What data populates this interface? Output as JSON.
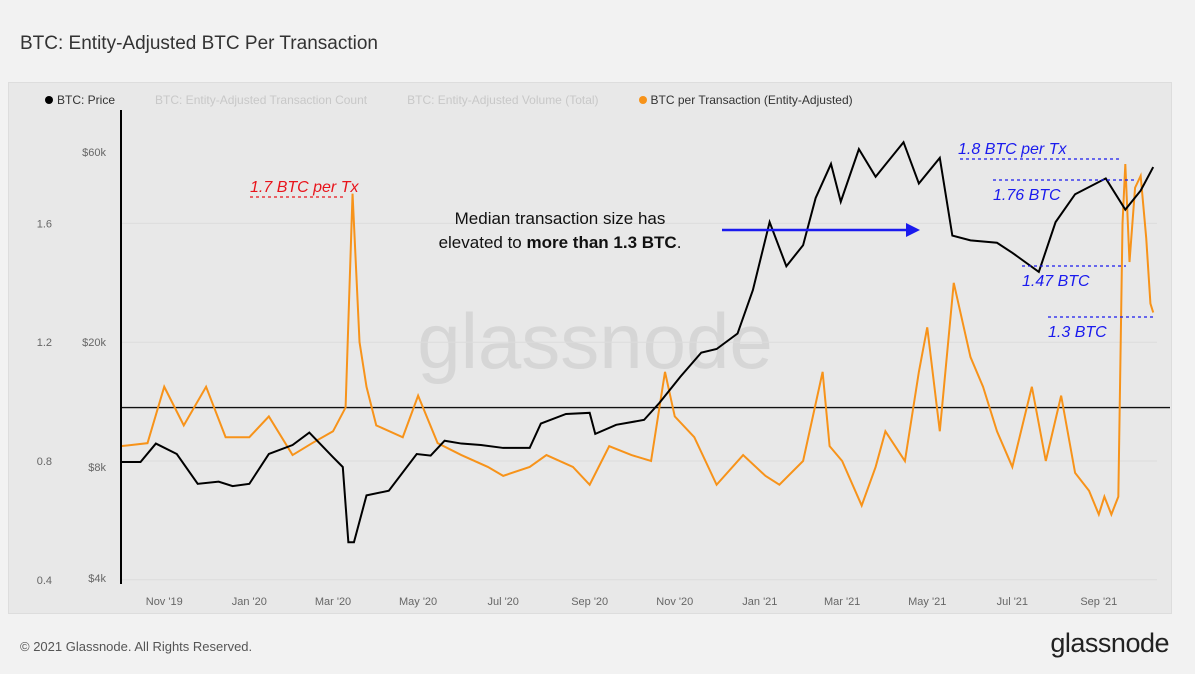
{
  "title": "BTC: Entity-Adjusted BTC Per Transaction",
  "footer": "© 2021 Glassnode. All Rights Reserved.",
  "logo": "glassnode",
  "watermark": "glassnode",
  "colors": {
    "price": "#000000",
    "btc_per_tx": "#f7931a",
    "legend_inactive": "#c8c8c8",
    "annotation_red": "#e8141b",
    "annotation_blue": "#1a1aee"
  },
  "chart_data": {
    "type": "line",
    "title": "BTC: Entity-Adjusted BTC Per Transaction",
    "legend": {
      "placement": "top-left",
      "entries": [
        {
          "label": "BTC: Price",
          "active": true,
          "color": "#000000"
        },
        {
          "label": "BTC: Entity-Adjusted Transaction Count",
          "active": false
        },
        {
          "label": "BTC: Entity-Adjusted Volume (Total)",
          "active": false
        },
        {
          "label": "BTC per Transaction (Entity-Adjusted)",
          "active": true,
          "color": "#f7931a"
        }
      ]
    },
    "x_ticks": [
      [
        "2019-11-01",
        "Nov '19"
      ],
      [
        "2020-01-01",
        "Jan '20"
      ],
      [
        "2020-03-01",
        "Mar '20"
      ],
      [
        "2020-05-01",
        "May '20"
      ],
      [
        "2020-07-01",
        "Jul '20"
      ],
      [
        "2020-09-01",
        "Sep '20"
      ],
      [
        "2020-11-01",
        "Nov '20"
      ],
      [
        "2021-01-01",
        "Jan '21"
      ],
      [
        "2021-03-01",
        "Mar '21"
      ],
      [
        "2021-05-01",
        "May '21"
      ],
      [
        "2021-07-01",
        "Jul '21"
      ],
      [
        "2021-09-01",
        "Sep '21"
      ]
    ],
    "xlim": [
      "2019-10-01",
      "2021-10-12"
    ],
    "y_left": {
      "ticks": [
        0.4,
        0.8,
        1.2,
        1.6
      ],
      "labels": [
        "0.4",
        "0.8",
        "1.2",
        "1.6"
      ],
      "range": [
        0.4,
        1.9
      ]
    },
    "y_price": {
      "scale": "log",
      "ticks": [
        4000,
        8000,
        20000,
        60000
      ],
      "labels": [
        "$4k",
        "$8k",
        "$20k",
        "$60k"
      ]
    },
    "grid": true,
    "reference_line": 0.98,
    "series": [
      {
        "name": "BTC: Price",
        "axis": "price",
        "points": [
          [
            "2019-10-01",
            8300
          ],
          [
            "2019-10-15",
            8300
          ],
          [
            "2019-10-26",
            9500
          ],
          [
            "2019-11-10",
            8800
          ],
          [
            "2019-11-25",
            7200
          ],
          [
            "2019-12-10",
            7300
          ],
          [
            "2019-12-20",
            7100
          ],
          [
            "2020-01-01",
            7200
          ],
          [
            "2020-01-15",
            8800
          ],
          [
            "2020-02-01",
            9400
          ],
          [
            "2020-02-13",
            10300
          ],
          [
            "2020-03-01",
            8600
          ],
          [
            "2020-03-08",
            8000
          ],
          [
            "2020-03-12",
            5000
          ],
          [
            "2020-03-16",
            5000
          ],
          [
            "2020-03-25",
            6700
          ],
          [
            "2020-04-10",
            6900
          ],
          [
            "2020-04-30",
            8800
          ],
          [
            "2020-05-10",
            8700
          ],
          [
            "2020-05-20",
            9700
          ],
          [
            "2020-06-01",
            9500
          ],
          [
            "2020-06-15",
            9400
          ],
          [
            "2020-07-01",
            9200
          ],
          [
            "2020-07-20",
            9200
          ],
          [
            "2020-07-28",
            11000
          ],
          [
            "2020-08-15",
            11800
          ],
          [
            "2020-09-01",
            11900
          ],
          [
            "2020-09-05",
            10200
          ],
          [
            "2020-09-20",
            10900
          ],
          [
            "2020-10-10",
            11300
          ],
          [
            "2020-10-21",
            12800
          ],
          [
            "2020-11-05",
            15500
          ],
          [
            "2020-11-20",
            18500
          ],
          [
            "2020-12-01",
            19000
          ],
          [
            "2020-12-16",
            21000
          ],
          [
            "2020-12-27",
            27000
          ],
          [
            "2021-01-08",
            40000
          ],
          [
            "2021-01-20",
            31000
          ],
          [
            "2021-02-01",
            35000
          ],
          [
            "2021-02-10",
            46000
          ],
          [
            "2021-02-21",
            56000
          ],
          [
            "2021-02-28",
            45000
          ],
          [
            "2021-03-13",
            61000
          ],
          [
            "2021-03-25",
            52000
          ],
          [
            "2021-04-14",
            63500
          ],
          [
            "2021-04-25",
            50000
          ],
          [
            "2021-05-10",
            58000
          ],
          [
            "2021-05-19",
            37000
          ],
          [
            "2021-06-01",
            36000
          ],
          [
            "2021-06-20",
            35500
          ],
          [
            "2021-07-01",
            33500
          ],
          [
            "2021-07-20",
            30000
          ],
          [
            "2021-08-01",
            40000
          ],
          [
            "2021-08-15",
            47000
          ],
          [
            "2021-09-06",
            51500
          ],
          [
            "2021-09-20",
            43000
          ],
          [
            "2021-10-01",
            48000
          ],
          [
            "2021-10-10",
            55000
          ]
        ]
      },
      {
        "name": "BTC per Transaction (Entity-Adjusted)",
        "axis": "left",
        "points": [
          [
            "2019-10-01",
            0.85
          ],
          [
            "2019-10-20",
            0.86
          ],
          [
            "2019-11-01",
            1.05
          ],
          [
            "2019-11-15",
            0.92
          ],
          [
            "2019-12-01",
            1.05
          ],
          [
            "2019-12-15",
            0.88
          ],
          [
            "2020-01-01",
            0.88
          ],
          [
            "2020-01-15",
            0.95
          ],
          [
            "2020-02-01",
            0.82
          ],
          [
            "2020-02-15",
            0.86
          ],
          [
            "2020-03-01",
            0.9
          ],
          [
            "2020-03-10",
            0.98
          ],
          [
            "2020-03-15",
            1.7
          ],
          [
            "2020-03-20",
            1.2
          ],
          [
            "2020-03-25",
            1.05
          ],
          [
            "2020-04-01",
            0.92
          ],
          [
            "2020-04-20",
            0.88
          ],
          [
            "2020-05-01",
            1.02
          ],
          [
            "2020-05-15",
            0.86
          ],
          [
            "2020-06-01",
            0.82
          ],
          [
            "2020-06-20",
            0.78
          ],
          [
            "2020-07-01",
            0.75
          ],
          [
            "2020-07-20",
            0.78
          ],
          [
            "2020-08-01",
            0.82
          ],
          [
            "2020-08-20",
            0.78
          ],
          [
            "2020-09-01",
            0.72
          ],
          [
            "2020-09-15",
            0.85
          ],
          [
            "2020-10-01",
            0.82
          ],
          [
            "2020-10-15",
            0.8
          ],
          [
            "2020-10-25",
            1.1
          ],
          [
            "2020-11-01",
            0.95
          ],
          [
            "2020-11-15",
            0.88
          ],
          [
            "2020-12-01",
            0.72
          ],
          [
            "2020-12-20",
            0.82
          ],
          [
            "2021-01-05",
            0.75
          ],
          [
            "2021-01-15",
            0.72
          ],
          [
            "2021-02-01",
            0.8
          ],
          [
            "2021-02-15",
            1.1
          ],
          [
            "2021-02-20",
            0.85
          ],
          [
            "2021-03-01",
            0.8
          ],
          [
            "2021-03-15",
            0.65
          ],
          [
            "2021-03-25",
            0.78
          ],
          [
            "2021-04-01",
            0.9
          ],
          [
            "2021-04-15",
            0.8
          ],
          [
            "2021-04-25",
            1.1
          ],
          [
            "2021-05-01",
            1.25
          ],
          [
            "2021-05-10",
            0.9
          ],
          [
            "2021-05-20",
            1.4
          ],
          [
            "2021-06-01",
            1.15
          ],
          [
            "2021-06-10",
            1.05
          ],
          [
            "2021-06-20",
            0.9
          ],
          [
            "2021-07-01",
            0.78
          ],
          [
            "2021-07-15",
            1.05
          ],
          [
            "2021-07-25",
            0.8
          ],
          [
            "2021-08-05",
            1.02
          ],
          [
            "2021-08-15",
            0.76
          ],
          [
            "2021-08-25",
            0.7
          ],
          [
            "2021-09-01",
            0.62
          ],
          [
            "2021-09-05",
            0.68
          ],
          [
            "2021-09-10",
            0.62
          ],
          [
            "2021-09-15",
            0.68
          ],
          [
            "2021-09-18",
            1.6
          ],
          [
            "2021-09-20",
            1.8
          ],
          [
            "2021-09-23",
            1.47
          ],
          [
            "2021-09-27",
            1.72
          ],
          [
            "2021-10-01",
            1.76
          ],
          [
            "2021-10-05",
            1.55
          ],
          [
            "2021-10-08",
            1.33
          ],
          [
            "2021-10-10",
            1.3
          ]
        ]
      }
    ],
    "annotations": [
      {
        "text": "1.7 BTC per Tx",
        "value": 1.7,
        "color": "red"
      },
      {
        "text": "1.8 BTC per Tx",
        "value": 1.8,
        "color": "blue"
      },
      {
        "text": "1.76 BTC",
        "value": 1.76,
        "color": "blue"
      },
      {
        "text": "1.47 BTC",
        "value": 1.47,
        "color": "blue"
      },
      {
        "text": "1.3 BTC",
        "value": 1.3,
        "color": "blue"
      }
    ],
    "callout": {
      "line1": "Median transaction size has",
      "line2_prefix": "elevated to ",
      "line2_bold": "more than 1.3 BTC",
      "line2_suffix": "."
    }
  }
}
